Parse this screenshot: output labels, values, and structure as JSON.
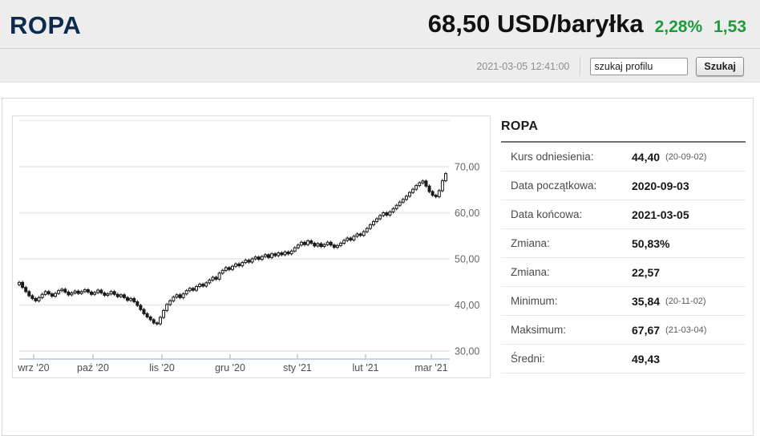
{
  "colors": {
    "green": "#1e9b3e",
    "navy": "#0d2a4f",
    "grid": "#ececec",
    "axis": "#b9c7da",
    "candle": "#1a1a1a"
  },
  "header": {
    "title": "ROPA",
    "price": "68,50 USD/baryłka",
    "change_pct": "2,28%",
    "change_abs": "1,53",
    "timestamp": "2021-03-05 12:41:00",
    "search_value": "szukaj profilu",
    "search_button": "Szukaj"
  },
  "panel": {
    "title": "ROPA",
    "rows": [
      {
        "label": "Kurs odniesienia:",
        "value": "44,40",
        "suffix": "(20-09-02)"
      },
      {
        "label": "Data początkowa:",
        "value": "2020-09-03",
        "suffix": ""
      },
      {
        "label": "Data końcowa:",
        "value": "2021-03-05",
        "suffix": ""
      },
      {
        "label": "Zmiana:",
        "value": "50,83%",
        "suffix": ""
      },
      {
        "label": "Zmiana:",
        "value": "22,57",
        "suffix": ""
      },
      {
        "label": "Minimum:",
        "value": "35,84",
        "suffix": "(20-11-02)"
      },
      {
        "label": "Maksimum:",
        "value": "67,67",
        "suffix": "(21-03-04)"
      },
      {
        "label": "Średni:",
        "value": "49,43",
        "suffix": ""
      }
    ]
  },
  "chart_data": {
    "type": "candlestick",
    "title": "ROPA",
    "unit": "USD/baryłka",
    "date_range": [
      "2020-09-03",
      "2021-03-05"
    ],
    "x_tick_labels": [
      "wrz '20",
      "paź '20",
      "lis '20",
      "gru '20",
      "sty '21",
      "lut '21",
      "mar '21"
    ],
    "y_ticks": [
      30,
      40,
      50,
      60,
      70
    ],
    "y_tick_labels": [
      "30,00",
      "40,00",
      "50,00",
      "60,00",
      "70,00"
    ],
    "ylim": [
      28.3,
      80
    ],
    "grid": true,
    "first_open": 44.4,
    "closes": [
      44.9,
      43.8,
      42.9,
      42.0,
      41.4,
      40.9,
      41.6,
      42.3,
      42.9,
      42.4,
      41.9,
      42.5,
      43.1,
      43.4,
      42.8,
      42.2,
      42.6,
      43.0,
      42.5,
      42.9,
      43.3,
      42.8,
      42.3,
      42.7,
      43.2,
      42.6,
      42.1,
      42.4,
      42.9,
      42.3,
      41.8,
      42.2,
      41.6,
      41.0,
      41.4,
      40.7,
      39.9,
      39.0,
      38.1,
      37.4,
      36.8,
      36.1,
      35.9,
      37.3,
      38.8,
      40.1,
      40.9,
      41.7,
      42.2,
      41.6,
      42.4,
      43.1,
      43.6,
      43.2,
      44.0,
      44.5,
      44.1,
      44.8,
      45.4,
      46.0,
      45.6,
      46.9,
      47.5,
      48.1,
      47.7,
      48.4,
      48.9,
      48.5,
      49.2,
      49.7,
      49.3,
      50.0,
      50.4,
      49.9,
      50.5,
      50.9,
      50.3,
      51.1,
      50.7,
      51.3,
      50.9,
      51.5,
      51.1,
      51.7,
      52.4,
      53.0,
      53.6,
      53.1,
      53.9,
      53.4,
      52.8,
      53.3,
      52.7,
      53.1,
      53.6,
      53.0,
      52.5,
      52.9,
      53.4,
      54.0,
      54.5,
      54.1,
      54.9,
      55.4,
      55.1,
      55.9,
      56.6,
      57.4,
      58.1,
      58.7,
      59.4,
      60.0,
      59.5,
      60.2,
      60.9,
      61.6,
      62.3,
      62.9,
      63.6,
      64.4,
      65.1,
      65.9,
      66.5,
      66.9,
      65.8,
      64.6,
      63.8,
      63.5,
      64.8,
      66.97,
      68.5
    ]
  }
}
